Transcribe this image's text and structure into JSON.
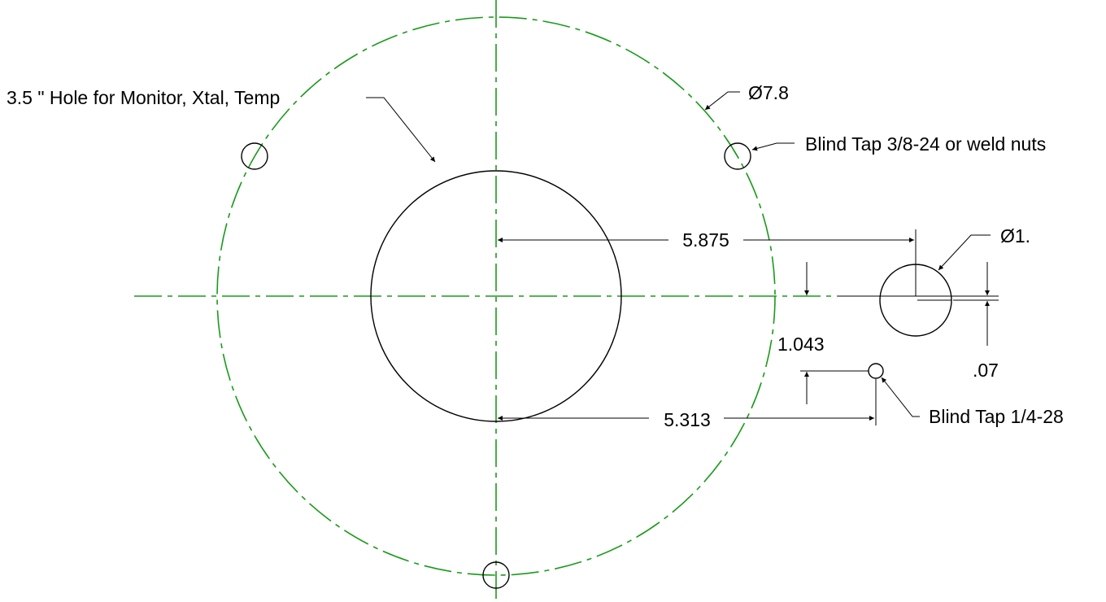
{
  "diagram": {
    "labels": {
      "center_hole": "3.5 \" Hole for Monitor, Xtal, Temp",
      "bolt_circle_dia": "Ø7.8",
      "blind_tap_large": "Blind Tap 3/8-24 or weld nuts",
      "small_hole_dia": "Ø1.",
      "dim_horizontal_upper": "5.875",
      "dim_vertical_small": ".07",
      "dim_vertical_left": "1.043",
      "dim_horizontal_lower": "5.313",
      "blind_tap_small": "Blind Tap 1/4-28"
    },
    "colors": {
      "centerline": "#1a9a1a",
      "geometry": "#000000"
    }
  }
}
